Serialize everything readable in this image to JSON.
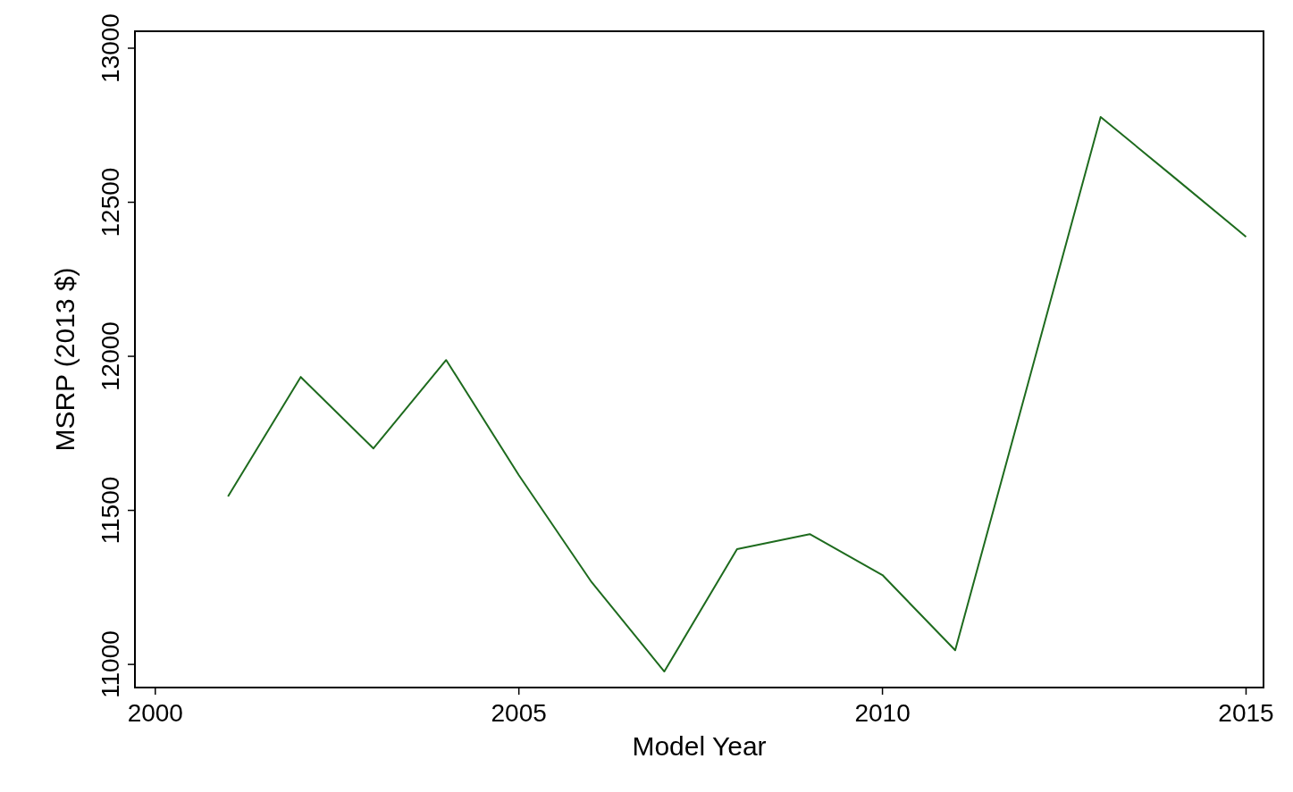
{
  "chart_data": {
    "type": "line",
    "xlabel": "Model Year",
    "ylabel": "MSRP (2013 $)",
    "x": [
      2001,
      2002,
      2003,
      2004,
      2005,
      2006,
      2007,
      2008,
      2009,
      2010,
      2011,
      2012,
      2013,
      2014,
      2015
    ],
    "series": [
      {
        "color": "#1e6b1e",
        "values": [
          11545,
          11933,
          11701,
          11988,
          11614,
          11267,
          10977,
          11374,
          11423,
          11290,
          11046,
          11910,
          12777,
          12583,
          12388
        ]
      }
    ],
    "xlim": [
      1999.72,
      2015.24
    ],
    "xticks": [
      2000,
      2005,
      2010,
      2015
    ],
    "ylim": [
      10925,
      13055
    ],
    "yticks": [
      11000,
      11500,
      12000,
      12500,
      13000
    ],
    "grid": false,
    "marker": "none",
    "line_style": "solid"
  }
}
